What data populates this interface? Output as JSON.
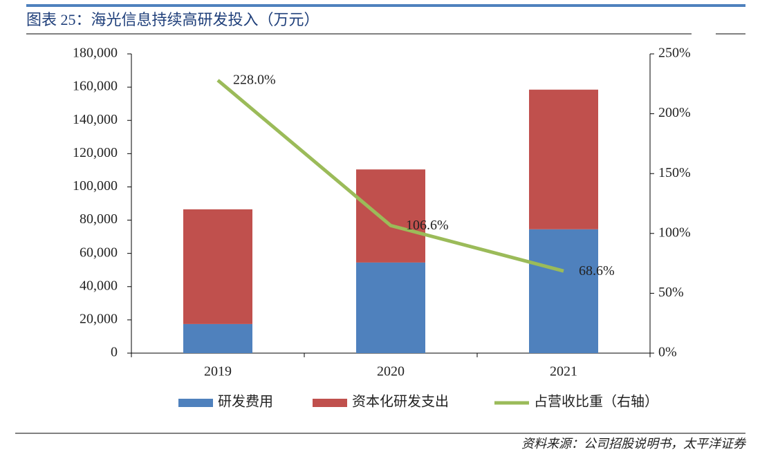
{
  "chart_data": {
    "type": "bar",
    "stacked": true,
    "title": "图表 25：海光信息持续高研发投入（万元）",
    "source": "资料来源：公司招股说明书，太平洋证券",
    "categories": [
      "2019",
      "2020",
      "2021"
    ],
    "series": [
      {
        "name": "研发费用",
        "color": "#4f81bd",
        "values": [
          17500,
          54500,
          74500
        ]
      },
      {
        "name": "资本化研发支出",
        "color": "#c0504d",
        "values": [
          69000,
          56000,
          84000
        ]
      },
      {
        "name": "占营收比重（右轴）",
        "color": "#9bbb59",
        "type": "line",
        "axis": "y2",
        "values": [
          228.0,
          106.6,
          68.6
        ],
        "value_labels": [
          "228.0%",
          "106.6%",
          "68.6%"
        ]
      }
    ],
    "ylim": [
      0,
      180000
    ],
    "yticks": [
      0,
      {
        "value": 20000,
        "label": "20,000"
      },
      {
        "value": 40000,
        "label": "40,000"
      },
      {
        "value": 60000,
        "label": "60,000"
      },
      {
        "value": 80000,
        "label": "80,000"
      },
      {
        "value": 100000,
        "label": "100,000"
      },
      {
        "value": 120000,
        "label": "120,000"
      },
      {
        "value": 140000,
        "label": "140,000"
      },
      {
        "value": 160000,
        "label": "160,000"
      },
      {
        "value": 180000,
        "label": "180,000"
      }
    ],
    "y2lim": [
      0,
      250
    ],
    "y2ticks": [
      {
        "value": 0,
        "label": "0%"
      },
      {
        "value": 50,
        "label": "50%"
      },
      {
        "value": 100,
        "label": "100%"
      },
      {
        "value": 150,
        "label": "150%"
      },
      {
        "value": 200,
        "label": "200%"
      },
      {
        "value": 250,
        "label": "250%"
      }
    ],
    "legend": "bottom",
    "grid": false
  }
}
